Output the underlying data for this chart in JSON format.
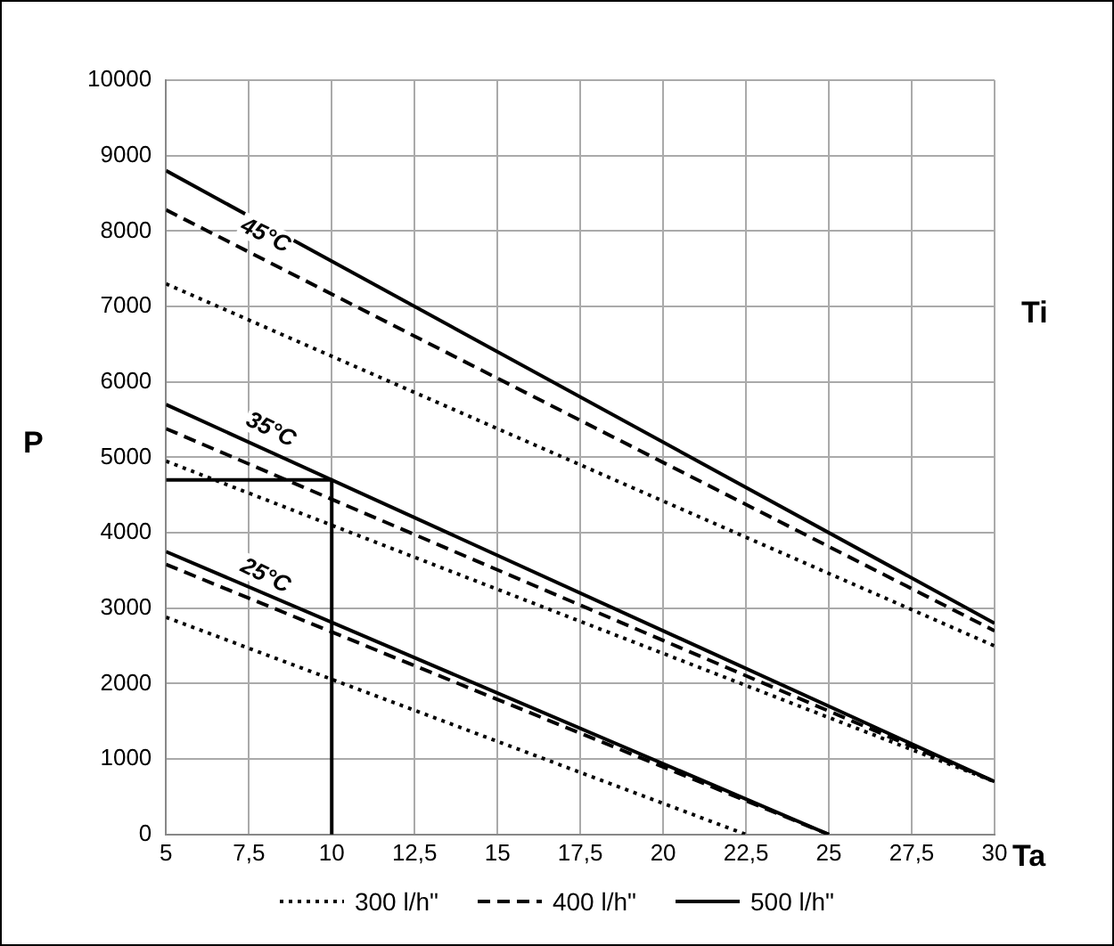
{
  "chart_data": {
    "type": "line",
    "xlabel": "Ta",
    "ylabel": "P",
    "annotations": [
      "45°C",
      "35°C",
      "25°C",
      "Ti"
    ],
    "xlim": [
      5,
      30
    ],
    "xticks": [
      5,
      {
        "value": 7.5,
        "label": "7,5"
      },
      10,
      {
        "value": 12.5,
        "label": "12,5"
      },
      15,
      {
        "value": 17.5,
        "label": "17,5"
      },
      20,
      {
        "value": 22.5,
        "label": "22,5"
      },
      25,
      {
        "value": 27.5,
        "label": "27,5"
      },
      30
    ],
    "ylim": [
      0,
      10000
    ],
    "yticks": [
      0,
      1000,
      2000,
      3000,
      4000,
      5000,
      6000,
      7000,
      8000,
      9000,
      10000
    ],
    "grid": true,
    "legend": "bottom",
    "marker": "none",
    "series": [
      {
        "name": "300 l/h\"",
        "color": "#000000",
        "line_style": "dotted",
        "x": [
          5,
          30
        ],
        "values": [
          7300,
          2500
        ]
      },
      {
        "name": "400 l/h\"",
        "color": "#000000",
        "line_style": "dashed",
        "x": [
          5,
          30
        ],
        "values": [
          8280,
          2700
        ]
      },
      {
        "name": "500 l/h\"",
        "color": "#000000",
        "line_style": "solid",
        "x": [
          5,
          30
        ],
        "values": [
          8800,
          2800
        ]
      },
      {
        "color": "#000000",
        "line_style": "dotted",
        "x": [
          5,
          30
        ],
        "values": [
          4950,
          700
        ]
      },
      {
        "color": "#000000",
        "line_style": "dashed",
        "x": [
          5,
          30
        ],
        "values": [
          5380,
          700
        ]
      },
      {
        "color": "#000000",
        "line_style": "solid",
        "x": [
          5,
          30
        ],
        "values": [
          5700,
          700
        ]
      },
      {
        "color": "#000000",
        "line_style": "dotted",
        "x": [
          5,
          22.5
        ],
        "values": [
          2880,
          0
        ]
      },
      {
        "color": "#000000",
        "line_style": "dashed",
        "x": [
          5,
          25
        ],
        "values": [
          3580,
          0
        ]
      },
      {
        "color": "#000000",
        "line_style": "solid",
        "x": [
          5,
          25
        ],
        "values": [
          3750,
          0
        ]
      },
      {
        "color": "#000000",
        "line_style": "solid",
        "x": [
          5,
          10,
          10
        ],
        "values": [
          4700,
          4700,
          0
        ]
      }
    ]
  }
}
